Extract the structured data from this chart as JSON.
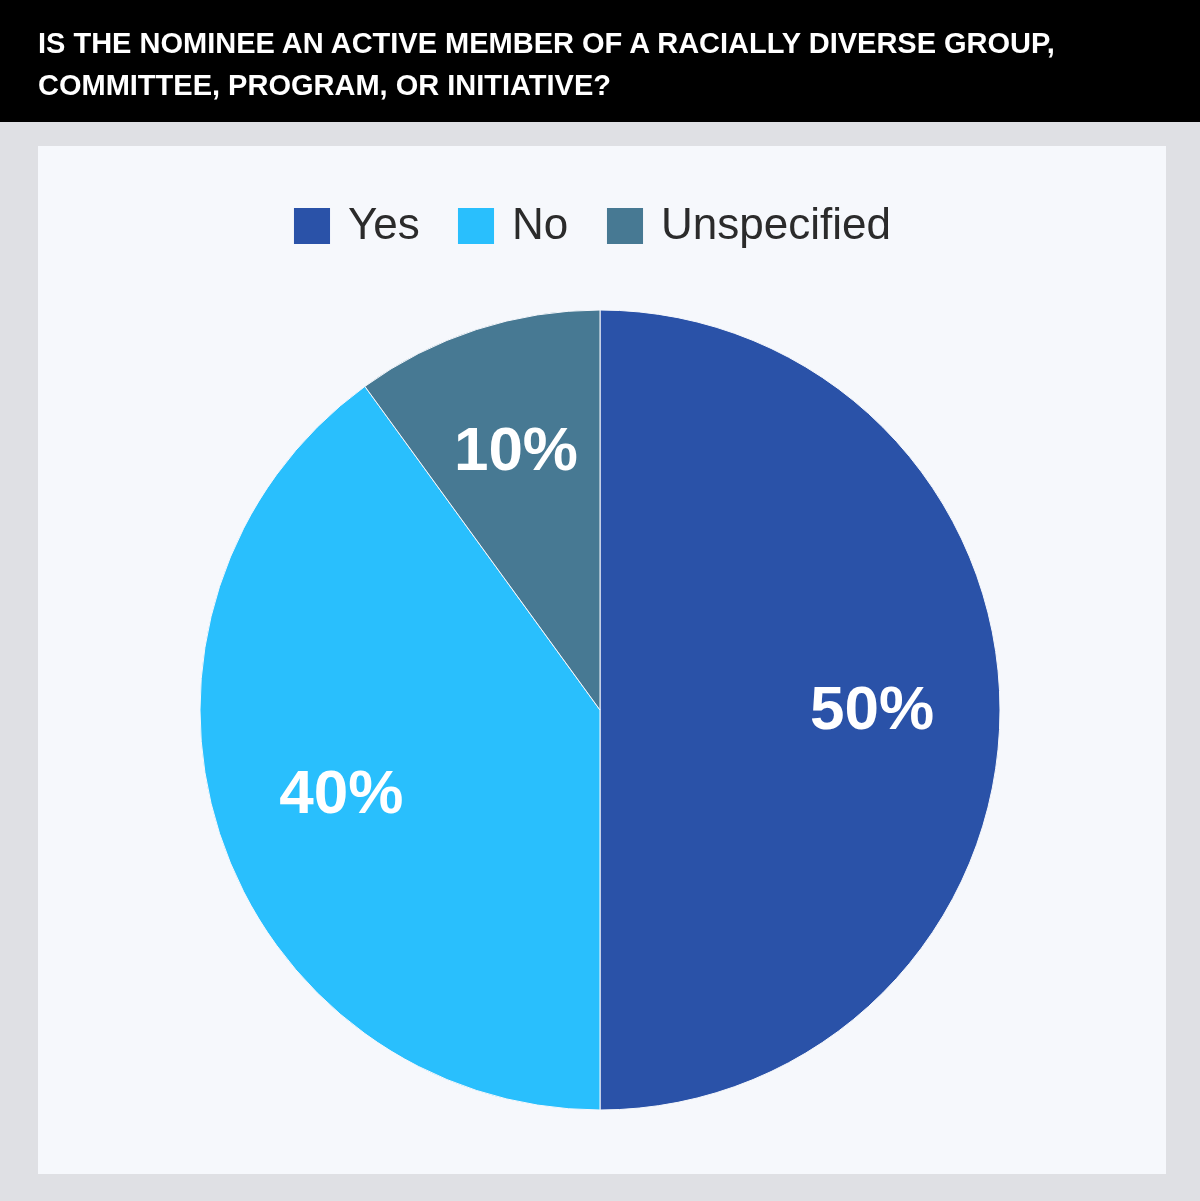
{
  "chart_data": {
    "type": "pie",
    "title": "IS THE NOMINEE AN ACTIVE MEMBER OF A RACIALLY DIVERSE GROUP, COMMITTEE, PROGRAM, OR INITIATIVE?",
    "categories": [
      "Yes",
      "No",
      "Unspecified"
    ],
    "values": [
      50,
      40,
      10
    ],
    "colors": [
      "#2a52a8",
      "#29bffd",
      "#477993"
    ],
    "value_labels": [
      "50%",
      "40%",
      "10%"
    ],
    "legend": "top"
  }
}
